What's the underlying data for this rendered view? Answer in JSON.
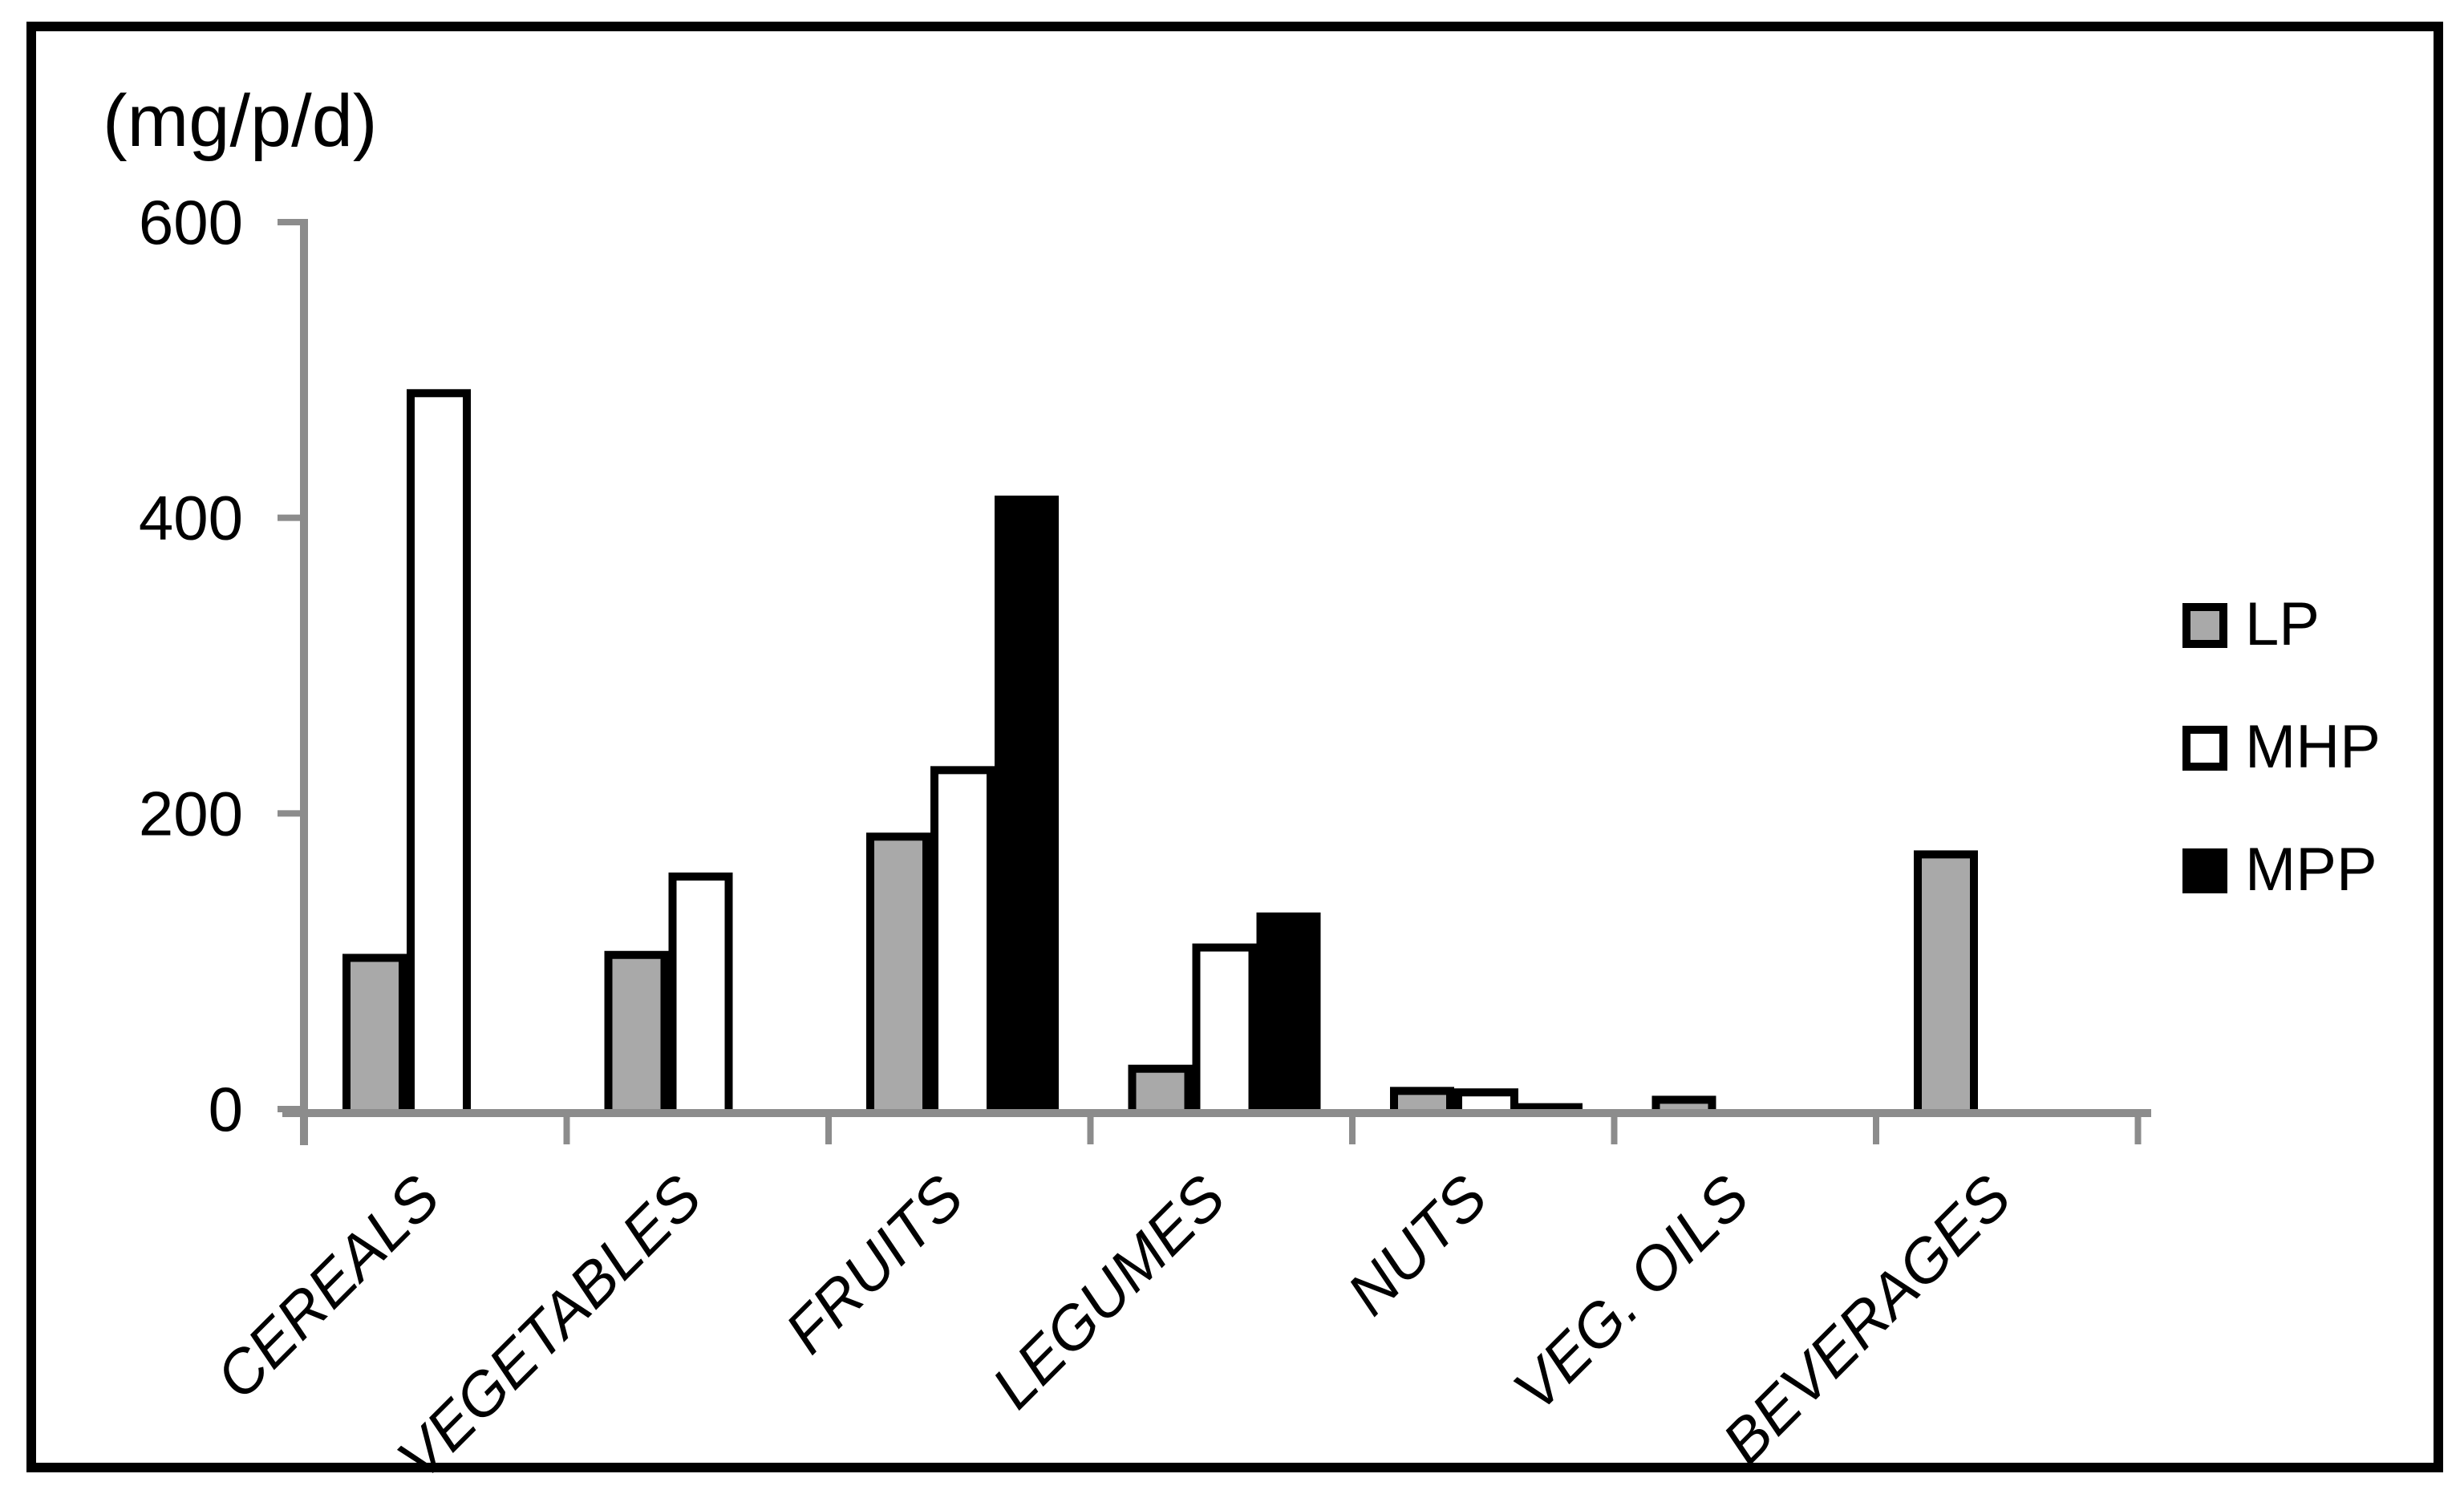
{
  "chart_data": {
    "type": "bar",
    "title": "",
    "ylabel": "(mg/p/d)",
    "xlabel": "",
    "categories": [
      "CEREALS",
      "VEGETABLES",
      "FRUITS",
      "LEGUMES",
      "NUTS",
      "VEG. OILS",
      "BEVERAGES"
    ],
    "series": [
      {
        "name": "LP",
        "color": "#A9A9A9",
        "values": [
          105,
          107,
          187,
          30,
          15,
          9,
          175
        ]
      },
      {
        "name": "MHP",
        "color": "#FFFFFF",
        "values": [
          487,
          160,
          232,
          112,
          14,
          0,
          0
        ]
      },
      {
        "name": "MPP",
        "color": "#000000",
        "values": [
          0,
          0,
          415,
          133,
          4,
          0,
          0
        ]
      }
    ],
    "yticks": [
      0,
      200,
      400,
      600
    ],
    "ylim": [
      0,
      600
    ],
    "grid": false,
    "legend_position": "right",
    "bar_outline_color": "#000000",
    "axis_color": "#8C8C8C",
    "frame_color": "#000000",
    "background_color": "#FFFFFF"
  }
}
